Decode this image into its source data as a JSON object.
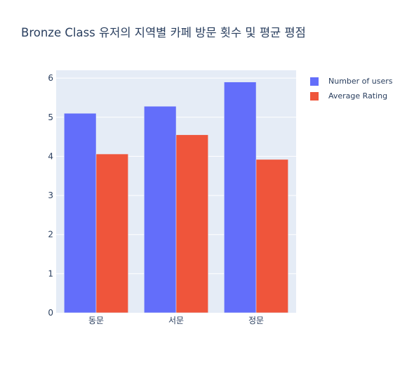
{
  "chart_data": {
    "type": "bar",
    "title": "Bronze Class 유저의 지역별 카페 방문 횟수 및 평균 평점",
    "categories": [
      "동문",
      "서문",
      "정문"
    ],
    "series": [
      {
        "name": "Number of users",
        "values": [
          5.1,
          5.28,
          5.9
        ],
        "color": "#636efa"
      },
      {
        "name": "Average Rating",
        "values": [
          4.06,
          4.55,
          3.92
        ],
        "color": "#ef553b"
      }
    ],
    "ylim": [
      0,
      6.2
    ],
    "yticks": [
      0,
      1,
      2,
      3,
      4,
      5,
      6
    ],
    "grid": true,
    "legend_position": "top-right",
    "plot_bgcolor": "#e5ecf6"
  }
}
